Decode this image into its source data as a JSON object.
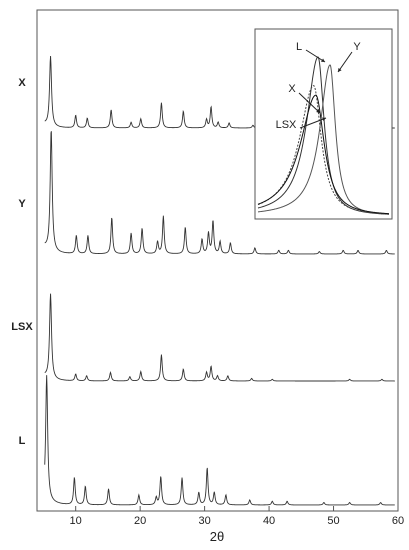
{
  "chart_data": {
    "type": "line",
    "title": "",
    "xlabel": "2θ",
    "ylabel": "",
    "xlim": [
      4,
      60
    ],
    "xticks": [
      10,
      20,
      30,
      40,
      50,
      60
    ],
    "grid": false,
    "series": [
      {
        "name": "X",
        "peaks": [
          [
            6.1,
            100
          ],
          [
            10.0,
            18
          ],
          [
            11.8,
            14
          ],
          [
            15.5,
            26
          ],
          [
            18.6,
            8
          ],
          [
            20.1,
            13
          ],
          [
            23.3,
            36
          ],
          [
            26.7,
            24
          ],
          [
            30.3,
            12
          ],
          [
            31.0,
            30
          ],
          [
            32.1,
            8
          ],
          [
            33.8,
            7
          ],
          [
            37.5,
            4
          ]
        ]
      },
      {
        "name": "Y",
        "peaks": [
          [
            6.2,
            100
          ],
          [
            10.1,
            15
          ],
          [
            11.9,
            15
          ],
          [
            15.6,
            30
          ],
          [
            18.6,
            17
          ],
          [
            20.3,
            21
          ],
          [
            22.7,
            10
          ],
          [
            23.6,
            31
          ],
          [
            27.0,
            22
          ],
          [
            29.6,
            12
          ],
          [
            30.6,
            17
          ],
          [
            31.3,
            27
          ],
          [
            32.4,
            10
          ],
          [
            34.0,
            9
          ],
          [
            37.8,
            5
          ],
          [
            41.5,
            3
          ],
          [
            43.0,
            3
          ],
          [
            47.8,
            2
          ],
          [
            51.5,
            3
          ],
          [
            53.8,
            3
          ],
          [
            58.2,
            3
          ]
        ]
      },
      {
        "name": "LSX",
        "peaks": [
          [
            6.1,
            100
          ],
          [
            10.0,
            8
          ],
          [
            11.7,
            6
          ],
          [
            15.4,
            10
          ],
          [
            18.4,
            5
          ],
          [
            20.1,
            11
          ],
          [
            23.3,
            31
          ],
          [
            26.7,
            14
          ],
          [
            30.3,
            10
          ],
          [
            31.0,
            17
          ],
          [
            32.0,
            6
          ],
          [
            33.6,
            6
          ],
          [
            37.3,
            3
          ],
          [
            40.5,
            2
          ],
          [
            52.5,
            2
          ],
          [
            57.5,
            2
          ]
        ]
      },
      {
        "name": "L",
        "peaks": [
          [
            5.5,
            100
          ],
          [
            9.8,
            22
          ],
          [
            11.5,
            15
          ],
          [
            15.1,
            13
          ],
          [
            19.8,
            8
          ],
          [
            22.5,
            6
          ],
          [
            23.2,
            23
          ],
          [
            26.5,
            22
          ],
          [
            29.1,
            10
          ],
          [
            30.4,
            30
          ],
          [
            31.5,
            10
          ],
          [
            33.3,
            8
          ],
          [
            37.0,
            4
          ],
          [
            40.5,
            3
          ],
          [
            42.8,
            3
          ],
          [
            48.5,
            2
          ],
          [
            52.5,
            2
          ],
          [
            57.3,
            2
          ]
        ]
      }
    ],
    "inset": {
      "series": [
        {
          "name": "L",
          "center": 49.5,
          "height": 100,
          "width": 1.6
        },
        {
          "name": "Y",
          "center": 50.6,
          "height": 95,
          "width": 1.4
        },
        {
          "name": "X",
          "center": 49.1,
          "height": 82,
          "width": 2.0
        },
        {
          "name": "LSX",
          "center": 49.3,
          "height": 76,
          "width": 2.2
        }
      ]
    }
  }
}
